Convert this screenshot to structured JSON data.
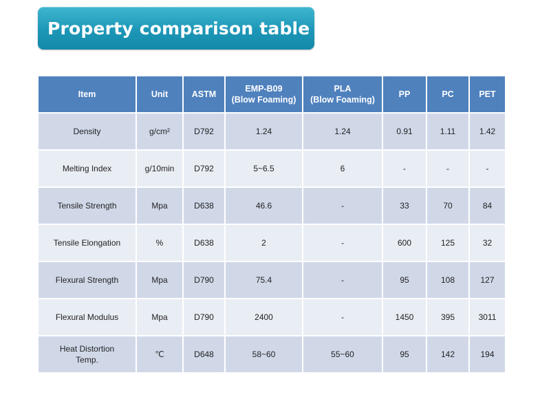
{
  "title": "Property comparison table",
  "colors": {
    "title_bg": "#1d97b7",
    "header_bg": "#4f81bd",
    "row_odd_bg": "#d0d8e8",
    "row_even_bg": "#e9edf4"
  },
  "table": {
    "headers": [
      {
        "line1": "Item",
        "line2": ""
      },
      {
        "line1": "Unit",
        "line2": ""
      },
      {
        "line1": "ASTM",
        "line2": ""
      },
      {
        "line1": "EMP-B09",
        "line2": "(Blow Foaming)"
      },
      {
        "line1": "PLA",
        "line2": "(Blow Foaming)"
      },
      {
        "line1": "PP",
        "line2": ""
      },
      {
        "line1": "PC",
        "line2": ""
      },
      {
        "line1": "PET",
        "line2": ""
      }
    ],
    "rows": [
      {
        "item": "Density",
        "item2": "",
        "unit": "g/cm²",
        "astm": "D792",
        "emp": "1.24",
        "pla": "1.24",
        "pp": "0.91",
        "pc": "1.11",
        "pet": "1.42"
      },
      {
        "item": "Melting Index",
        "item2": "",
        "unit": "g/10min",
        "astm": "D792",
        "emp": "5~6.5",
        "pla": "6",
        "pp": "-",
        "pc": "-",
        "pet": "-"
      },
      {
        "item": "Tensile Strength",
        "item2": "",
        "unit": "Mpa",
        "astm": "D638",
        "emp": "46.6",
        "pla": "-",
        "pp": "33",
        "pc": "70",
        "pet": "84"
      },
      {
        "item": "Tensile Elongation",
        "item2": "",
        "unit": "%",
        "astm": "D638",
        "emp": "2",
        "pla": "-",
        "pp": "600",
        "pc": "125",
        "pet": "32"
      },
      {
        "item": "Flexural Strength",
        "item2": "",
        "unit": "Mpa",
        "astm": "D790",
        "emp": "75.4",
        "pla": "-",
        "pp": "95",
        "pc": "108",
        "pet": "127"
      },
      {
        "item": "Flexural Modulus",
        "item2": "",
        "unit": "Mpa",
        "astm": "D790",
        "emp": "2400",
        "pla": "-",
        "pp": "1450",
        "pc": "395",
        "pet": "3011"
      },
      {
        "item": "Heat Distortion",
        "item2": "Temp.",
        "unit": "℃",
        "astm": "D648",
        "emp": "58~60",
        "pla": "55~60",
        "pp": "95",
        "pc": "142",
        "pet": "194"
      }
    ]
  }
}
